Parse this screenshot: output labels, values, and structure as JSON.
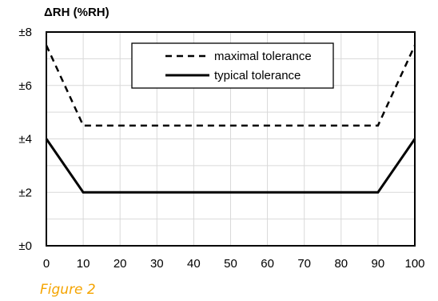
{
  "caption": "Figure 2",
  "colors": {
    "caption": "#f5a400",
    "series": "#000000",
    "grid": "#d9d9d9"
  },
  "chart_data": {
    "type": "line",
    "ylabel": "ΔRH (%RH)",
    "xlabel": "",
    "xlim": [
      0,
      100
    ],
    "ylim": [
      0,
      8
    ],
    "x_ticks": [
      0,
      10,
      20,
      30,
      40,
      50,
      60,
      70,
      80,
      90,
      100
    ],
    "y_ticks": [
      0,
      2,
      4,
      6,
      8
    ],
    "y_tick_labels": [
      "±0",
      "±2",
      "±4",
      "±6",
      "±8"
    ],
    "grid": true,
    "legend_position": "top-center",
    "series": [
      {
        "name": "maximal tolerance",
        "style": "dashed",
        "x": [
          0,
          10,
          90,
          100
        ],
        "y": [
          7.5,
          4.5,
          4.5,
          7.5
        ]
      },
      {
        "name": "typical tolerance",
        "style": "solid",
        "x": [
          0,
          10,
          90,
          100
        ],
        "y": [
          4,
          2,
          2,
          4
        ]
      }
    ]
  }
}
